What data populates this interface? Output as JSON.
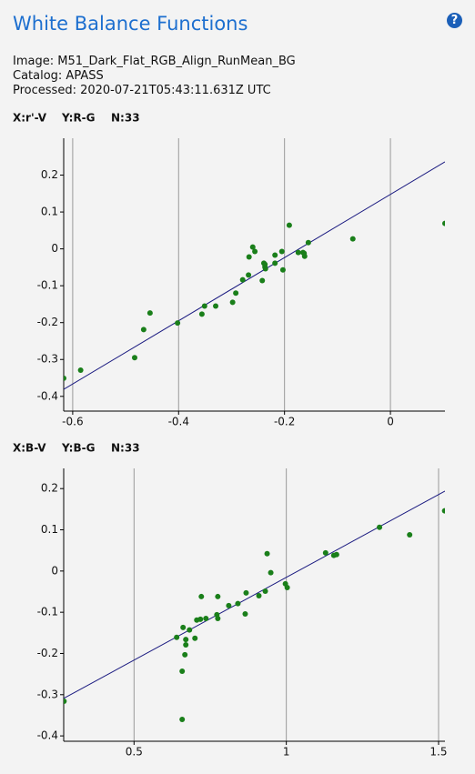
{
  "title": "White Balance Functions",
  "help": "?",
  "info": [
    "Image: M51_Dark_Flat_RGB_Align_RunMean_BG",
    "Catalog: APASS",
    "Processed: 2020-07-21T05:43:11.631Z UTC"
  ],
  "chart_data": [
    {
      "type": "scatter",
      "x_label": "X:r'-V",
      "y_label": "Y:R-G",
      "n_label": "N:33",
      "color": "#1a7f1a",
      "grid": true,
      "xlim": [
        -0.617,
        0.103
      ],
      "ylim": [
        -0.44,
        0.3
      ],
      "xticks": [
        -0.6,
        -0.4,
        -0.2,
        0
      ],
      "yticks": [
        -0.4,
        -0.3,
        -0.2,
        -0.1,
        0,
        0.1,
        0.2
      ],
      "x": [
        -0.617,
        -0.585,
        -0.483,
        -0.466,
        -0.454,
        -0.402,
        -0.356,
        -0.351,
        -0.33,
        -0.298,
        -0.292,
        -0.279,
        -0.268,
        -0.267,
        -0.26,
        -0.256,
        -0.242,
        -0.239,
        -0.237,
        -0.237,
        -0.236,
        -0.218,
        -0.218,
        -0.205,
        -0.203,
        -0.191,
        -0.174,
        -0.165,
        -0.163,
        -0.162,
        -0.155,
        -0.071,
        0.103
      ],
      "y": [
        -0.351,
        -0.329,
        -0.295,
        -0.219,
        -0.174,
        -0.201,
        -0.177,
        -0.155,
        -0.155,
        -0.145,
        -0.12,
        -0.084,
        -0.071,
        -0.022,
        0.005,
        -0.007,
        -0.086,
        -0.039,
        -0.042,
        -0.049,
        -0.054,
        -0.039,
        -0.017,
        -0.007,
        -0.057,
        0.064,
        -0.01,
        -0.01,
        -0.012,
        -0.02,
        0.017,
        0.027,
        0.069
      ],
      "fit_line": {
        "color": "#1a1a80",
        "x": [
          -0.617,
          0.103
        ],
        "y": [
          -0.381,
          0.236
        ]
      }
    },
    {
      "type": "scatter",
      "x_label": "X:B-V",
      "y_label": "Y:B-G",
      "n_label": "N:33",
      "color": "#1a7f1a",
      "grid": true,
      "xlim": [
        0.269,
        1.521
      ],
      "ylim": [
        -0.413,
        0.249
      ],
      "xticks": [
        0.5,
        1,
        1.5
      ],
      "yticks": [
        -0.4,
        -0.3,
        -0.2,
        -0.1,
        0,
        0.1,
        0.2
      ],
      "x": [
        0.27,
        0.64,
        0.658,
        0.661,
        0.67,
        0.67,
        0.667,
        0.682,
        0.7,
        0.706,
        0.718,
        0.721,
        0.736,
        0.775,
        0.772,
        0.775,
        0.811,
        0.841,
        0.865,
        0.868,
        0.91,
        0.931,
        0.937,
        0.949,
        0.997,
        1.003,
        1.129,
        1.156,
        1.165,
        1.306,
        1.405,
        1.52,
        0.658
      ],
      "y": [
        -0.316,
        -0.161,
        -0.243,
        -0.137,
        -0.166,
        -0.179,
        -0.203,
        -0.143,
        -0.163,
        -0.119,
        -0.117,
        -0.062,
        -0.115,
        -0.115,
        -0.106,
        -0.062,
        -0.084,
        -0.079,
        -0.104,
        -0.053,
        -0.06,
        -0.049,
        0.042,
        -0.004,
        -0.031,
        -0.04,
        0.044,
        0.038,
        0.04,
        0.106,
        0.088,
        0.146,
        -0.36
      ],
      "fit_line": {
        "color": "#1a1a80",
        "x": [
          0.269,
          1.521
        ],
        "y": [
          -0.309,
          0.194
        ]
      }
    }
  ]
}
